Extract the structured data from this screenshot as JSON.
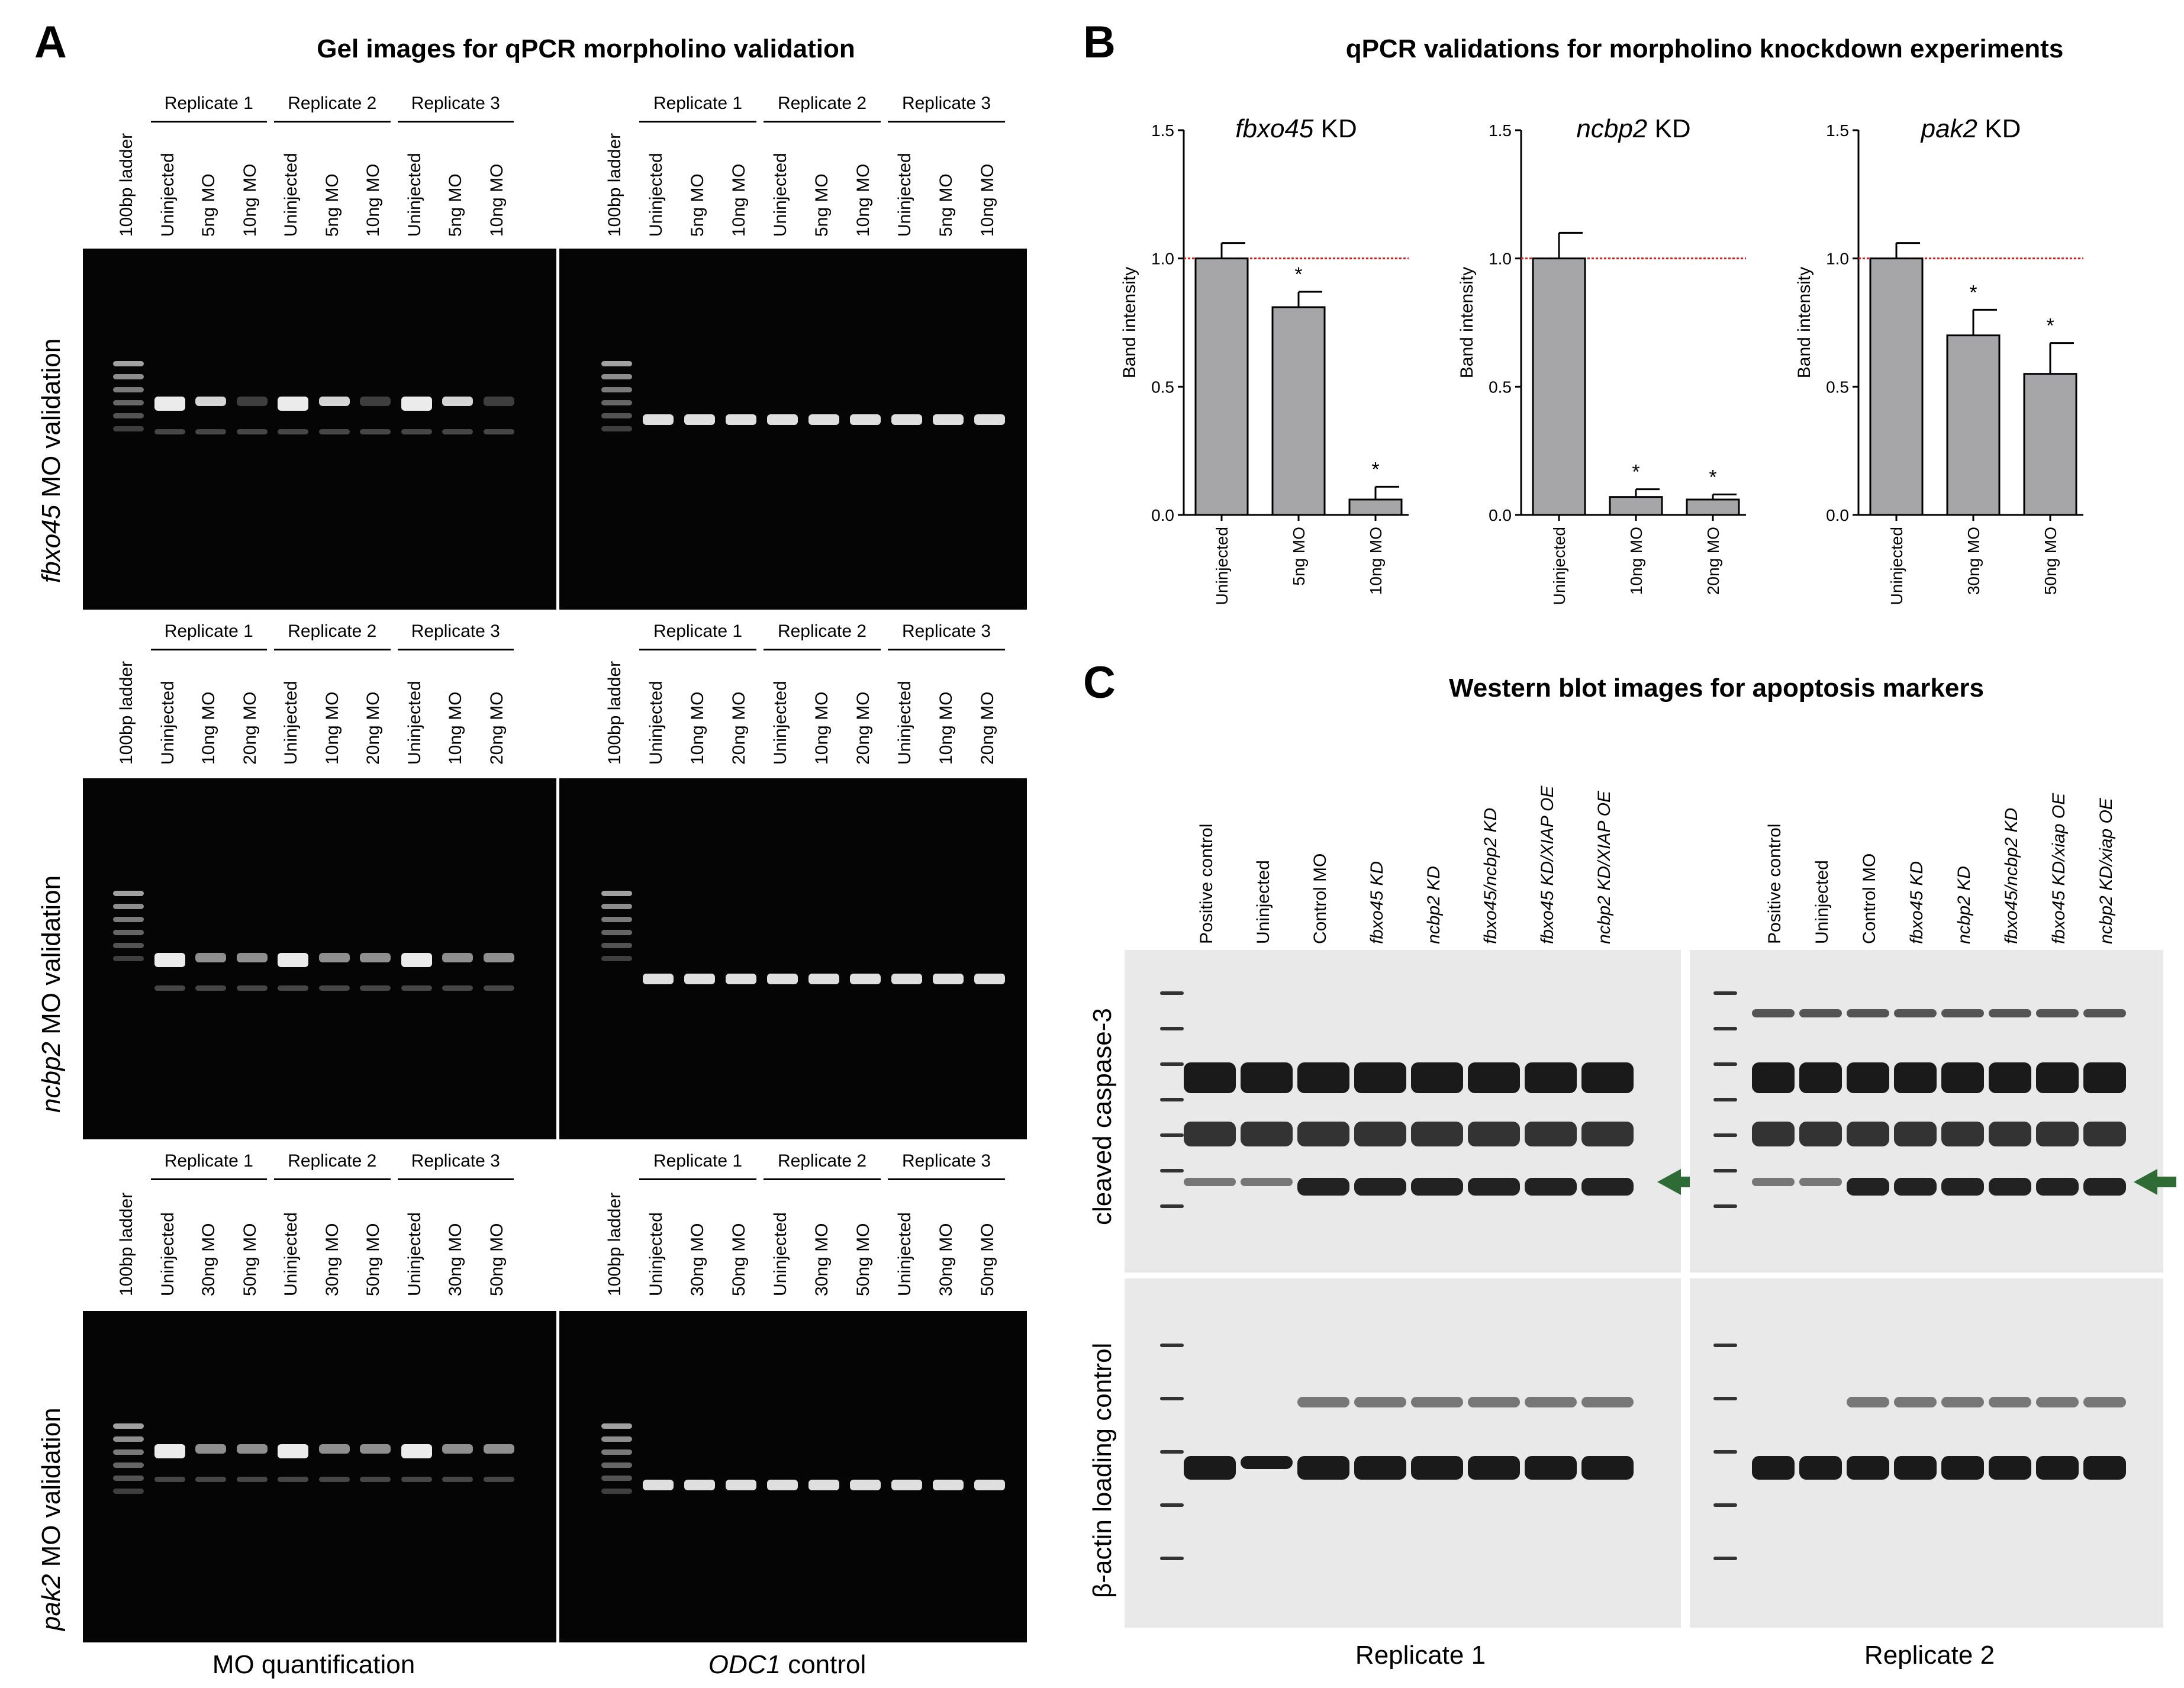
{
  "panelA": {
    "letter": "A",
    "title": "Gel images for qPCR morpholino validation",
    "rows": [
      {
        "label_italic": "fbxo45",
        "label_rest": " MO validation",
        "left_lanes": [
          "100bp ladder",
          "Uninjected",
          "5ng MO",
          "10ng MO",
          "Uninjected",
          "5ng MO",
          "10ng MO",
          "Uninjected",
          "5ng MO",
          "10ng MO"
        ],
        "right_lanes": [
          "100bp ladder",
          "Uninjected",
          "5ng MO",
          "10ng MO",
          "Uninjected",
          "5ng MO",
          "10ng MO",
          "Uninjected",
          "5ng MO",
          "10ng MO"
        ],
        "replicates": [
          "Replicate 1",
          "Replicate 2",
          "Replicate 3"
        ]
      },
      {
        "label_italic": "ncbp2",
        "label_rest": " MO validation",
        "left_lanes": [
          "100bp ladder",
          "Uninjected",
          "10ng MO",
          "20ng MO",
          "Uninjected",
          "10ng MO",
          "20ng MO",
          "Uninjected",
          "10ng MO",
          "20ng MO"
        ],
        "right_lanes": [
          "100bp ladder",
          "Uninjected",
          "10ng MO",
          "20ng MO",
          "Uninjected",
          "10ng MO",
          "20ng MO",
          "Uninjected",
          "10ng MO",
          "20ng MO"
        ],
        "replicates": [
          "Replicate 1",
          "Replicate 2",
          "Replicate 3"
        ]
      },
      {
        "label_italic": "pak2",
        "label_rest": " MO validation",
        "left_lanes": [
          "100bp ladder",
          "Uninjected",
          "30ng MO",
          "50ng MO",
          "Uninjected",
          "30ng MO",
          "50ng MO",
          "Uninjected",
          "30ng MO",
          "50ng MO"
        ],
        "right_lanes": [
          "100bp ladder",
          "Uninjected",
          "30ng MO",
          "50ng MO",
          "Uninjected",
          "30ng MO",
          "50ng MO",
          "Uninjected",
          "30ng MO",
          "50ng MO"
        ],
        "replicates": [
          "Replicate 1",
          "Replicate 2",
          "Replicate 3"
        ]
      }
    ],
    "bottom_left": "MO quantification",
    "bottom_right_italic": "ODC1",
    "bottom_right_rest": " control"
  },
  "panelB": {
    "letter": "B",
    "title": "qPCR validations for morpholino knockdown experiments",
    "colors": {
      "bar": "#a6a6a9",
      "reference_line": "#d42020"
    }
  },
  "chart_data": [
    {
      "type": "bar",
      "title_italic": "fbxo45",
      "title_rest": " KD",
      "ylabel": "Band intensity",
      "ylim": [
        0,
        1.5
      ],
      "yticks": [
        "0.0",
        "0.5",
        "1.0",
        "1.5"
      ],
      "categories": [
        "Uninjected",
        "5ng MO",
        "10ng MO"
      ],
      "values": [
        1.0,
        0.81,
        0.06
      ],
      "errors": [
        0.06,
        0.06,
        0.05
      ],
      "significance": [
        "",
        "*",
        "*"
      ],
      "reference_line": 1.0
    },
    {
      "type": "bar",
      "title_italic": "ncbp2",
      "title_rest": " KD",
      "ylabel": "Band intensity",
      "ylim": [
        0,
        1.5
      ],
      "yticks": [
        "0.0",
        "0.5",
        "1.0",
        "1.5"
      ],
      "categories": [
        "Uninjected",
        "10ng MO",
        "20ng MO"
      ],
      "values": [
        1.0,
        0.07,
        0.06
      ],
      "errors": [
        0.1,
        0.03,
        0.02
      ],
      "significance": [
        "",
        "*",
        "*"
      ],
      "reference_line": 1.0
    },
    {
      "type": "bar",
      "title_italic": "pak2",
      "title_rest": " KD",
      "ylabel": "Band intensity",
      "ylim": [
        0,
        1.5
      ],
      "yticks": [
        "0.0",
        "0.5",
        "1.0",
        "1.5"
      ],
      "categories": [
        "Uninjected",
        "30ng MO",
        "50ng MO"
      ],
      "values": [
        1.0,
        0.7,
        0.55
      ],
      "errors": [
        0.06,
        0.1,
        0.12
      ],
      "significance": [
        "",
        "*",
        "*"
      ],
      "reference_line": 1.0
    }
  ],
  "panelC": {
    "letter": "C",
    "title": "Western blot images for apoptosis markers",
    "rep1_lanes": [
      "Positive control",
      "Uninjected",
      "Control MO",
      "fbxo45 KD",
      "ncbp2 KD",
      "fbxo45/ncbp2 KD",
      "fbxo45 KD/XIAP OE",
      "ncbp2 KD/XIAP OE"
    ],
    "rep1_lane_italic": [
      false,
      false,
      false,
      true,
      true,
      true,
      true,
      true
    ],
    "rep2_lanes": [
      "Positive control",
      "Uninjected",
      "Control MO",
      "fbxo45 KD",
      "ncbp2 KD",
      "fbxo45/ncbp2 KD",
      "fbxo45 KD/xiap OE",
      "ncbp2 KD/xiap OE"
    ],
    "rep2_lane_italic": [
      false,
      false,
      false,
      true,
      true,
      true,
      true,
      true
    ],
    "row_top": "cleaved caspase-3",
    "row_bottom": "β-actin loading control",
    "bottom_left": "Replicate 1",
    "bottom_right": "Replicate 2",
    "arrow_color": "#2e6b35"
  }
}
